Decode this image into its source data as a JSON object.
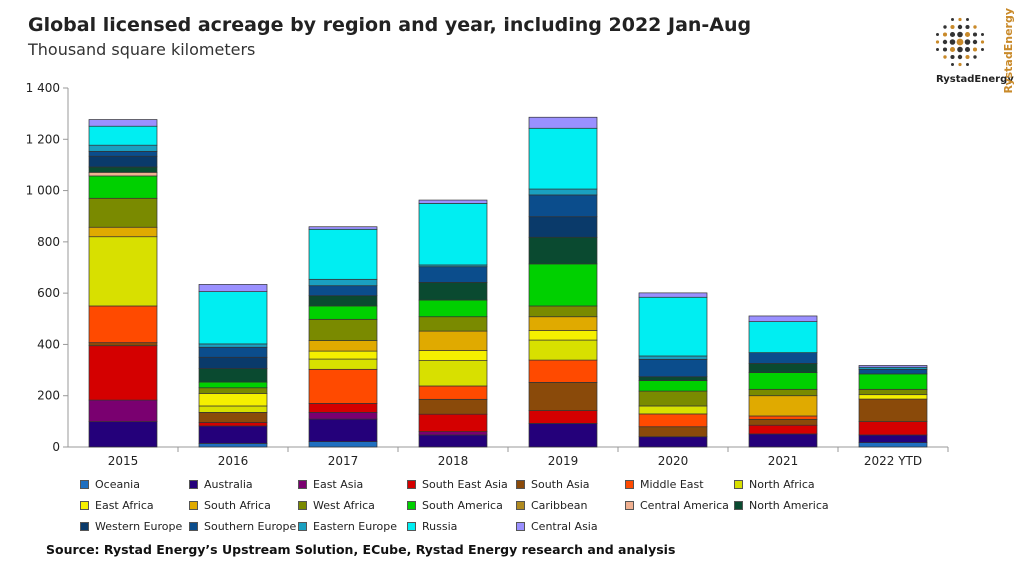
{
  "chart_data": {
    "type": "bar",
    "stacked": true,
    "title": "Global licensed acreage by region and year, including 2022 Jan-Aug",
    "subtitle": "Thousand square kilometers",
    "categories": [
      "2015",
      "2016",
      "2017",
      "2018",
      "2019",
      "2020",
      "2021",
      "2022 YTD"
    ],
    "ylim": [
      0,
      1400
    ],
    "yticks": [
      0,
      200,
      400,
      600,
      800,
      1000,
      1200,
      1400
    ],
    "ytick_labels": [
      "0",
      "200",
      "400",
      "600",
      "800",
      "1 000",
      "1 200",
      "1 400"
    ],
    "grid": false,
    "legend_placement": "bottom",
    "series": [
      {
        "name": "Oceania",
        "color": "#1f6fc0",
        "values": [
          0,
          14,
          21,
          0,
          0,
          0,
          0,
          17
        ]
      },
      {
        "name": "Australia",
        "color": "#24007a",
        "values": [
          99,
          68,
          88,
          47,
          92,
          40,
          51,
          30
        ]
      },
      {
        "name": "East Asia",
        "color": "#7a0070",
        "values": [
          84,
          0,
          26,
          13,
          0,
          0,
          0,
          0
        ]
      },
      {
        "name": "South East Asia",
        "color": "#d40000",
        "values": [
          212,
          14,
          35,
          68,
          50,
          0,
          34,
          52
        ]
      },
      {
        "name": "South Asia",
        "color": "#8a4a0a",
        "values": [
          12,
          39,
          0,
          58,
          110,
          39,
          23,
          88
        ]
      },
      {
        "name": "Middle East",
        "color": "#ff4a00",
        "values": [
          143,
          0,
          133,
          52,
          87,
          50,
          13,
          0
        ]
      },
      {
        "name": "North Africa",
        "color": "#d8e000",
        "values": [
          270,
          25,
          40,
          99,
          78,
          31,
          0,
          0
        ]
      },
      {
        "name": "East Africa",
        "color": "#f5f000",
        "values": [
          0,
          49,
          31,
          39,
          37,
          0,
          0,
          17
        ]
      },
      {
        "name": "South Africa",
        "color": "#e0aa00",
        "values": [
          37,
          0,
          41,
          76,
          54,
          0,
          79,
          0
        ]
      },
      {
        "name": "West Africa",
        "color": "#7a8a00",
        "values": [
          113,
          22,
          83,
          56,
          42,
          58,
          25,
          21
        ]
      },
      {
        "name": "South America",
        "color": "#00d000",
        "values": [
          87,
          22,
          52,
          65,
          164,
          41,
          65,
          60
        ]
      },
      {
        "name": "Caribbean",
        "color": "#b08a20",
        "values": [
          0,
          0,
          0,
          0,
          0,
          0,
          0,
          0
        ]
      },
      {
        "name": "Central America",
        "color": "#f0b090",
        "values": [
          14,
          0,
          0,
          0,
          0,
          0,
          0,
          0
        ]
      },
      {
        "name": "North America",
        "color": "#0a4a30",
        "values": [
          21,
          53,
          40,
          69,
          104,
          15,
          36,
          0
        ]
      },
      {
        "name": "Western Europe",
        "color": "#0a3a6a",
        "values": [
          42,
          44,
          0,
          0,
          80,
          0,
          0,
          0
        ]
      },
      {
        "name": "Southern Europe",
        "color": "#0b4d8c",
        "values": [
          19,
          39,
          39,
          61,
          85,
          68,
          42,
          18
        ]
      },
      {
        "name": "Eastern Europe",
        "color": "#1aa0c0",
        "values": [
          24,
          13,
          25,
          7,
          23,
          13,
          0,
          8
        ]
      },
      {
        "name": "Russia",
        "color": "#00eef2",
        "values": [
          74,
          204,
          195,
          240,
          237,
          229,
          121,
          0
        ]
      },
      {
        "name": "Central Asia",
        "color": "#9a90ff",
        "values": [
          26,
          28,
          10,
          13,
          43,
          17,
          22,
          7
        ]
      }
    ]
  },
  "source": "Source: Rystad Energy’s Upstream Solution,  ECube, Rystad Energy research and analysis",
  "logo": {
    "text": "RystadEnergy",
    "vertical_text": "RystadEnergy"
  }
}
